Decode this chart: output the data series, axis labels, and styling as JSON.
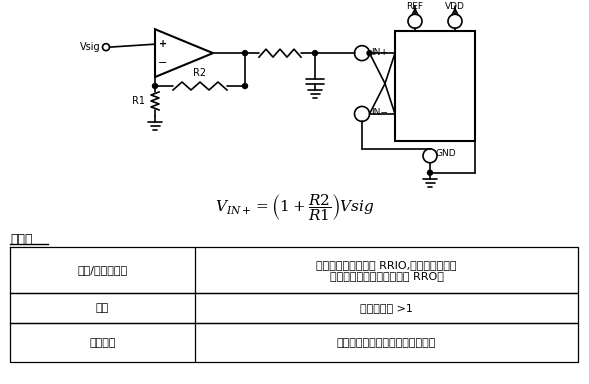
{
  "table_title": "利与弊",
  "table_rows": [
    [
      "裕量/单电源供电",
      "单电源供电可能需要 RRIO,取决于增益。如\n果增益足够高，可能只需要 RRO。"
    ],
    [
      "增益",
      "仅允许增益 >1"
    ],
    [
      "输入阻抗",
      "高阻抗受放大器的输入漏电流限制"
    ]
  ],
  "bg_color": "#ffffff",
  "text_color": "#000000",
  "table_border_color": "#000000",
  "circuit_color": "#000000",
  "font_size_table": 8,
  "font_size_formula": 11,
  "font_size_title": 9
}
